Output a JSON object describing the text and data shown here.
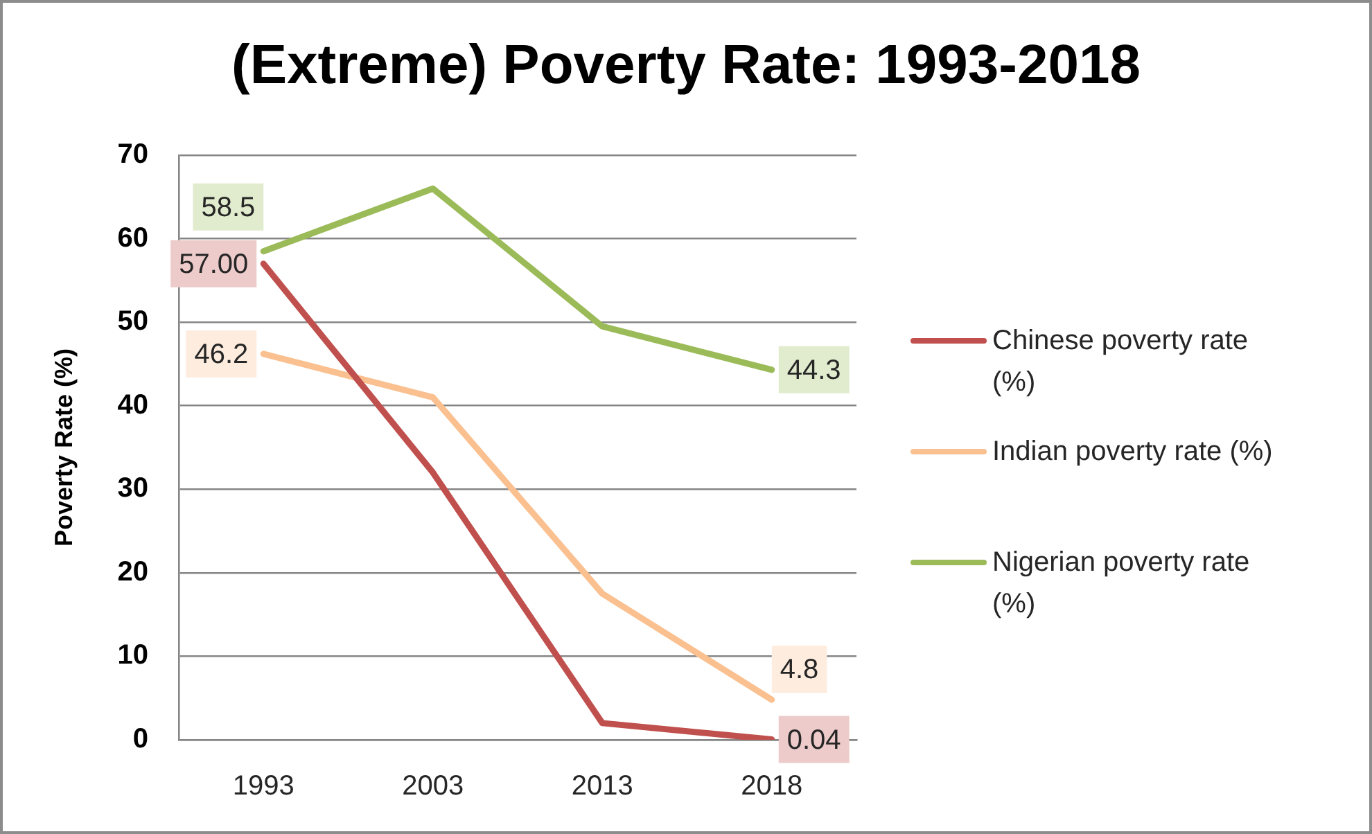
{
  "chart_data": {
    "type": "line",
    "title": "(Extreme) Poverty Rate: 1993-2018",
    "ylabel": "Poverty Rate (%)",
    "categories": [
      "1993",
      "2003",
      "2013",
      "2018"
    ],
    "series": [
      {
        "name": "Chinese poverty rate (%)",
        "color": "#c0504d",
        "values": [
          57.0,
          32,
          2,
          0.04
        ],
        "value_labels": [
          "57.00",
          null,
          null,
          "0.04"
        ]
      },
      {
        "name": "Indian poverty rate (%)",
        "color": "#fac090",
        "values": [
          46.2,
          41,
          17.5,
          4.8
        ],
        "value_labels": [
          "46.2",
          null,
          null,
          "4.8"
        ]
      },
      {
        "name": "Nigerian poverty rate (%)",
        "color": "#9bbb59",
        "values": [
          58.5,
          66,
          49.5,
          44.3
        ],
        "value_labels": [
          "58.5",
          null,
          null,
          "44.3"
        ]
      }
    ],
    "ylim": [
      0,
      70
    ],
    "yticks": [
      0,
      10,
      20,
      30,
      40,
      50,
      60,
      70
    ],
    "grid": "y",
    "legend": "right",
    "marker": "none",
    "line_style": "solid"
  }
}
